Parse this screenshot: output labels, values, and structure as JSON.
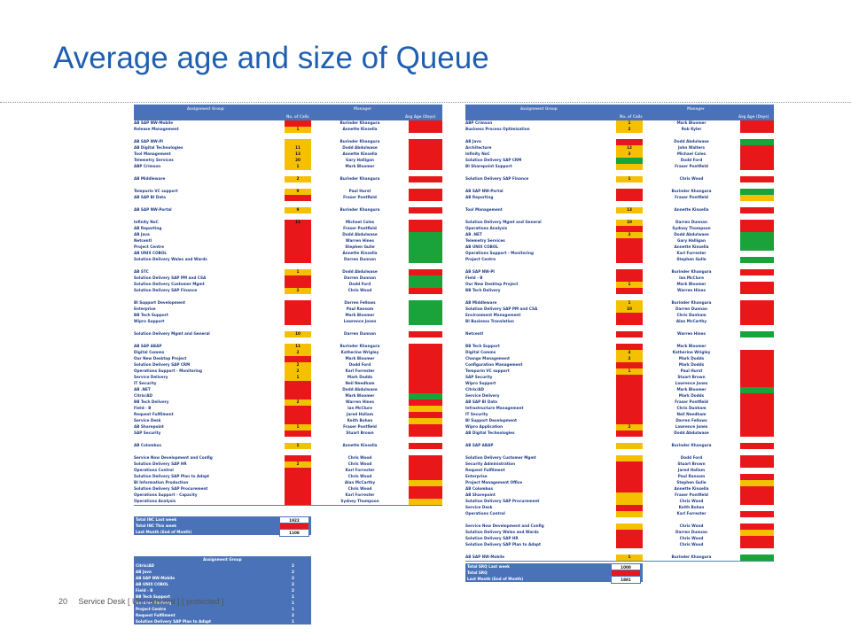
{
  "slide": {
    "title": "Average age and size of Queue",
    "page_number": "20",
    "footer_text": "Service Desk [ Unrestricted ] [ protected ]"
  },
  "colors": {
    "green": "#1aa33a",
    "yellow": "#f5c000",
    "red": "#e8171a",
    "header_blue": "#4a72b8"
  },
  "left_table": {
    "headers": [
      "Assignment Group",
      "No. of Calls",
      "Manager",
      "Avg Age (Days)"
    ],
    "rows": [
      {
        "g": "AB SAP NW-Mobile",
        "n": "",
        "m": "Burinder Khangura",
        "s": "r",
        "a": "r"
      },
      {
        "g": "Release Management",
        "n": "1",
        "m": "Annette Kinsella",
        "s": "y",
        "a": "r"
      },
      {
        "g": "",
        "n": "",
        "m": "",
        "s": "",
        "a": ""
      },
      {
        "g": "AB SAP NW-PI",
        "n": "",
        "m": "Burinder Khangura",
        "s": "y",
        "a": "r"
      },
      {
        "g": "AB Digital Technologies",
        "n": "11",
        "m": "Dodd Abdulwase",
        "s": "y",
        "a": "r"
      },
      {
        "g": "Tool Management",
        "n": "13",
        "m": "Annette Kinsella",
        "s": "y",
        "a": "r"
      },
      {
        "g": "Telemetry Services",
        "n": "20",
        "m": "Gary Halligan",
        "s": "y",
        "a": "r"
      },
      {
        "g": "ABP Crimson",
        "n": "1",
        "m": "Mark Bloomer",
        "s": "y",
        "a": "r"
      },
      {
        "g": "",
        "n": "",
        "m": "",
        "s": "",
        "a": ""
      },
      {
        "g": "AB Middleware",
        "n": "2",
        "m": "Burinder Khangura",
        "s": "y",
        "a": "r"
      },
      {
        "g": "",
        "n": "",
        "m": "",
        "s": "",
        "a": ""
      },
      {
        "g": "Tempurin VC support",
        "n": "9",
        "m": "Paul Hurst",
        "s": "y",
        "a": "r"
      },
      {
        "g": "AB SAP BI Data",
        "n": "",
        "m": "Fraser Pontfield",
        "s": "r",
        "a": "r"
      },
      {
        "g": "",
        "n": "",
        "m": "",
        "s": "",
        "a": ""
      },
      {
        "g": "AB SAP NW-Portal",
        "n": "9",
        "m": "Burinder Khangura",
        "s": "y",
        "a": "r"
      },
      {
        "g": "",
        "n": "",
        "m": "",
        "s": "",
        "a": ""
      },
      {
        "g": "Infinity NoC",
        "n": "11",
        "m": "Michael Coles",
        "s": "r",
        "a": "r"
      },
      {
        "g": "AB Reporting",
        "n": "",
        "m": "Fraser Pontfield",
        "s": "r",
        "a": "r"
      },
      {
        "g": "AB Java",
        "n": "",
        "m": "Dodd Abdulwase",
        "s": "r",
        "a": "g"
      },
      {
        "g": "Netcentl",
        "n": "",
        "m": "Warren Hines",
        "s": "r",
        "a": "g"
      },
      {
        "g": "Project Centre",
        "n": "",
        "m": "Stephen Gulle",
        "s": "r",
        "a": "g"
      },
      {
        "g": "AB UNIX COBOL",
        "n": "",
        "m": "Annette Kinsella",
        "s": "r",
        "a": "g"
      },
      {
        "g": "Solution Delivery Wales and Wards",
        "n": "",
        "m": "Darren Dunnan",
        "s": "r",
        "a": "g"
      },
      {
        "g": "",
        "n": "",
        "m": "",
        "s": "",
        "a": ""
      },
      {
        "g": "AB STC",
        "n": "1",
        "m": "Dodd Abdulwase",
        "s": "y",
        "a": "r"
      },
      {
        "g": "Solution Delivery SAP PM and CSA",
        "n": "",
        "m": "Darren Dunnan",
        "s": "r",
        "a": "g"
      },
      {
        "g": "Solution Delivery Customer Mgmt",
        "n": "",
        "m": "Dodd Ford",
        "s": "r",
        "a": "g"
      },
      {
        "g": "Solution Delivery SAP Finance",
        "n": "2",
        "m": "Chris Wood",
        "s": "y",
        "a": "r"
      },
      {
        "g": "",
        "n": "",
        "m": "",
        "s": "",
        "a": ""
      },
      {
        "g": "BI Support Development",
        "n": "",
        "m": "Darren Fellows",
        "s": "r",
        "a": "g"
      },
      {
        "g": "Enterprise",
        "n": "",
        "m": "Paul Ransom",
        "s": "r",
        "a": "g"
      },
      {
        "g": "BB Tech Support",
        "n": "",
        "m": "Mark Bloomer",
        "s": "r",
        "a": "g"
      },
      {
        "g": "Wipro Support",
        "n": "",
        "m": "Lawrence Jones",
        "s": "r",
        "a": "g"
      },
      {
        "g": "",
        "n": "",
        "m": "",
        "s": "",
        "a": ""
      },
      {
        "g": "Solution Delivery Mgmt and General",
        "n": "10",
        "m": "Darren Dunnan",
        "s": "y",
        "a": "r"
      },
      {
        "g": "",
        "n": "",
        "m": "",
        "s": "",
        "a": ""
      },
      {
        "g": "AB SAP ABAP",
        "n": "11",
        "m": "Burinder Khangura",
        "s": "y",
        "a": "r"
      },
      {
        "g": "Digital Comms",
        "n": "2",
        "m": "Katherine Wrigley",
        "s": "y",
        "a": "r"
      },
      {
        "g": "Our New Desktop Project",
        "n": "",
        "m": "Mark Bloomer",
        "s": "r",
        "a": "r"
      },
      {
        "g": "Solution Delivery SAP CRM",
        "n": "2",
        "m": "Dodd Ford",
        "s": "y",
        "a": "r"
      },
      {
        "g": "Operations Support - Monitoring",
        "n": "2",
        "m": "Karl Forrester",
        "s": "y",
        "a": "r"
      },
      {
        "g": "Service Delivery",
        "n": "1",
        "m": "Mark Dodds",
        "s": "y",
        "a": "r"
      },
      {
        "g": "IT Security",
        "n": "",
        "m": "Neil Needham",
        "s": "r",
        "a": "r"
      },
      {
        "g": "AB .NET",
        "n": "",
        "m": "Dodd Abdulwase",
        "s": "r",
        "a": "r"
      },
      {
        "g": "Citrix/AD",
        "n": "",
        "m": "Mark Bloomer",
        "s": "r",
        "a": "g"
      },
      {
        "g": "BB Tech Delivery",
        "n": "2",
        "m": "Warren Hines",
        "s": "y",
        "a": "r"
      },
      {
        "g": "Field - B",
        "n": "",
        "m": "Ian McClure",
        "s": "r",
        "a": "y"
      },
      {
        "g": "Request Fulfilment",
        "n": "",
        "m": "Jared Hallam",
        "s": "r",
        "a": "r"
      },
      {
        "g": "Service Desk",
        "n": "",
        "m": "Keith Bohan",
        "s": "r",
        "a": "y"
      },
      {
        "g": "AB Sharepoint",
        "n": "1",
        "m": "Fraser Pontfield",
        "s": "y",
        "a": "r"
      },
      {
        "g": "SAP Security",
        "n": "",
        "m": "Stuart Brown",
        "s": "r",
        "a": "r"
      },
      {
        "g": "",
        "n": "",
        "m": "",
        "s": "",
        "a": ""
      },
      {
        "g": "AB Colombus",
        "n": "1",
        "m": "Annette Kinsella",
        "s": "y",
        "a": "r"
      },
      {
        "g": "",
        "n": "",
        "m": "",
        "s": "",
        "a": ""
      },
      {
        "g": "Service Now Development and Config",
        "n": "",
        "m": "Chris Wood",
        "s": "r",
        "a": "r"
      },
      {
        "g": "Solution Delivery SAP HR",
        "n": "2",
        "m": "Chris Wood",
        "s": "y",
        "a": "r"
      },
      {
        "g": "Operations Control",
        "n": "",
        "m": "Karl Forrester",
        "s": "r",
        "a": "r"
      },
      {
        "g": "Solution Delivery SAP Plan to Adapt",
        "n": "",
        "m": "Chris Wood",
        "s": "r",
        "a": "r"
      },
      {
        "g": "BI Information Production",
        "n": "",
        "m": "Alan McCarthy",
        "s": "r",
        "a": "y"
      },
      {
        "g": "Solution Delivery SAP Procurement",
        "n": "",
        "m": "Chris Wood",
        "s": "r",
        "a": "r"
      },
      {
        "g": "Operations Support - Capacity",
        "n": "",
        "m": "Karl Forrester",
        "s": "r",
        "a": "r"
      },
      {
        "g": "Operations Analysis",
        "n": "",
        "m": "Sydney Thompson",
        "s": "r",
        "a": "y"
      }
    ]
  },
  "right_table": {
    "headers": [
      "Assignment Group",
      "No. of Calls",
      "Manager",
      "Avg Age (Days)"
    ],
    "rows": [
      {
        "g": "ABP Crimson",
        "n": "1",
        "m": "Mark Bloomer",
        "s": "y",
        "a": "r"
      },
      {
        "g": "Business Process Optimisation",
        "n": "2",
        "m": "Rob Kyler",
        "s": "y",
        "a": "r"
      },
      {
        "g": "",
        "n": "",
        "m": "",
        "s": "",
        "a": ""
      },
      {
        "g": "AB Java",
        "n": "",
        "m": "Dodd Abdulwase",
        "s": "r",
        "a": "g"
      },
      {
        "g": "Architecture",
        "n": "12",
        "m": "John Walters",
        "s": "y",
        "a": "r"
      },
      {
        "g": "Infinity NoC",
        "n": "3",
        "m": "Michael Coles",
        "s": "y",
        "a": "r"
      },
      {
        "g": "Solution Delivery SAP CRM",
        "n": "",
        "m": "Dodd Ford",
        "s": "g",
        "a": "r"
      },
      {
        "g": "BI Sharepoint Support",
        "n": "",
        "m": "Fraser Pontfield",
        "s": "y",
        "a": "r"
      },
      {
        "g": "",
        "n": "",
        "m": "",
        "s": "",
        "a": ""
      },
      {
        "g": "Solution Delivery SAP Finance",
        "n": "1",
        "m": "Chris Wood",
        "s": "y",
        "a": "r"
      },
      {
        "g": "",
        "n": "",
        "m": "",
        "s": "",
        "a": ""
      },
      {
        "g": "AB SAP NW-Portal",
        "n": "",
        "m": "Burinder Khangura",
        "s": "r",
        "a": "g"
      },
      {
        "g": "AB Reporting",
        "n": "",
        "m": "Fraser Pontfield",
        "s": "r",
        "a": "y"
      },
      {
        "g": "",
        "n": "",
        "m": "",
        "s": "",
        "a": ""
      },
      {
        "g": "Tool Management",
        "n": "13",
        "m": "Annette Kinsella",
        "s": "y",
        "a": "r"
      },
      {
        "g": "",
        "n": "",
        "m": "",
        "s": "",
        "a": ""
      },
      {
        "g": "Solution Delivery Mgmt and General",
        "n": "10",
        "m": "Darren Dunnan",
        "s": "y",
        "a": "r"
      },
      {
        "g": "Operations Analysis",
        "n": "",
        "m": "Sydney Thompson",
        "s": "r",
        "a": "r"
      },
      {
        "g": "AB .NET",
        "n": "3",
        "m": "Dodd Abdulwase",
        "s": "y",
        "a": "g"
      },
      {
        "g": "Telemetry Services",
        "n": "",
        "m": "Gary Halligan",
        "s": "r",
        "a": "g"
      },
      {
        "g": "AB UNIX COBOL",
        "n": "",
        "m": "Annette Kinsella",
        "s": "r",
        "a": "g"
      },
      {
        "g": "Operations Support - Monitoring",
        "n": "",
        "m": "Karl Forrester",
        "s": "r",
        "a": "w"
      },
      {
        "g": "Project Centre",
        "n": "",
        "m": "Stephen Gulle",
        "s": "r",
        "a": "g"
      },
      {
        "g": "",
        "n": "",
        "m": "",
        "s": "",
        "a": ""
      },
      {
        "g": "AB SAP NW-PI",
        "n": "",
        "m": "Burinder Khangura",
        "s": "r",
        "a": "r"
      },
      {
        "g": "Field - B",
        "n": "",
        "m": "Ian McClure",
        "s": "r",
        "a": "w"
      },
      {
        "g": "Our New Desktop Project",
        "n": "1",
        "m": "Mark Bloomer",
        "s": "y",
        "a": "r"
      },
      {
        "g": "BB Tech Delivery",
        "n": "",
        "m": "Warren Hines",
        "s": "r",
        "a": "r"
      },
      {
        "g": "",
        "n": "",
        "m": "",
        "s": "",
        "a": ""
      },
      {
        "g": "AB Middleware",
        "n": "1",
        "m": "Burinder Khangura",
        "s": "y",
        "a": "r"
      },
      {
        "g": "Solution Delivery SAP PM and CSA",
        "n": "10",
        "m": "Darren Dunnan",
        "s": "y",
        "a": "r"
      },
      {
        "g": "Environment Management",
        "n": "",
        "m": "Chris Dunham",
        "s": "r",
        "a": "r"
      },
      {
        "g": "BI Business Translation",
        "n": "",
        "m": "Alan McCarthy",
        "s": "r",
        "a": "r"
      },
      {
        "g": "",
        "n": "",
        "m": "",
        "s": "",
        "a": ""
      },
      {
        "g": "Netcentl",
        "n": "",
        "m": "Warren Hines",
        "s": "r",
        "a": "g"
      },
      {
        "g": "",
        "n": "",
        "m": "",
        "s": "",
        "a": ""
      },
      {
        "g": "BB Tech Support",
        "n": "",
        "m": "Mark Bloomer",
        "s": "r",
        "a": "w"
      },
      {
        "g": "Digital Comms",
        "n": "4",
        "m": "Katherine Wrigley",
        "s": "y",
        "a": "r"
      },
      {
        "g": "Change Management",
        "n": "2",
        "m": "Mark Dodds",
        "s": "y",
        "a": "r"
      },
      {
        "g": "Configuration Management",
        "n": "",
        "m": "Mark Dodds",
        "s": "r",
        "a": "r"
      },
      {
        "g": "Tempurin VC support",
        "n": "1",
        "m": "Paul Hurst",
        "s": "y",
        "a": "r"
      },
      {
        "g": "SAP Security",
        "n": "",
        "m": "Stuart Brown",
        "s": "r",
        "a": "r"
      },
      {
        "g": "Wipro Support",
        "n": "",
        "m": "Lawrence Jones",
        "s": "r",
        "a": "r"
      },
      {
        "g": "Citrix/AD",
        "n": "",
        "m": "Mark Bloomer",
        "s": "r",
        "a": "g"
      },
      {
        "g": "Service Delivery",
        "n": "",
        "m": "Mark Dodds",
        "s": "r",
        "a": "r"
      },
      {
        "g": "AB SAP BI Data",
        "n": "",
        "m": "Fraser Pontfield",
        "s": "r",
        "a": "r"
      },
      {
        "g": "Infrastructure Management",
        "n": "",
        "m": "Chris Dunham",
        "s": "r",
        "a": "r"
      },
      {
        "g": "IT Security",
        "n": "",
        "m": "Neil Needham",
        "s": "r",
        "a": "r"
      },
      {
        "g": "BI Support Development",
        "n": "",
        "m": "Darren Fellows",
        "s": "r",
        "a": "r"
      },
      {
        "g": "Wipro Application",
        "n": "2",
        "m": "Lawrence Jones",
        "s": "y",
        "a": "r"
      },
      {
        "g": "AB Digital Technologies",
        "n": "",
        "m": "Dodd Abdulwase",
        "s": "r",
        "a": "r"
      },
      {
        "g": "",
        "n": "",
        "m": "",
        "s": "",
        "a": ""
      },
      {
        "g": "AB SAP ABAP",
        "n": "",
        "m": "Burinder Khangura",
        "s": "y",
        "a": "r"
      },
      {
        "g": "",
        "n": "",
        "m": "",
        "s": "",
        "a": ""
      },
      {
        "g": "Solution Delivery Customer Mgmt",
        "n": "",
        "m": "Dodd Ford",
        "s": "y",
        "a": "r"
      },
      {
        "g": "Security Administration",
        "n": "",
        "m": "Stuart Brown",
        "s": "r",
        "a": "r"
      },
      {
        "g": "Request Fulfilment",
        "n": "",
        "m": "Jared Hallam",
        "s": "r",
        "a": "w"
      },
      {
        "g": "Enterprise",
        "n": "",
        "m": "Paul Ransom",
        "s": "r",
        "a": "r"
      },
      {
        "g": "Project Management Office",
        "n": "",
        "m": "Stephen Gulle",
        "s": "r",
        "a": "y"
      },
      {
        "g": "AB Colombus",
        "n": "",
        "m": "Annette Kinsella",
        "s": "r",
        "a": "r"
      },
      {
        "g": "AB Sharepoint",
        "n": "",
        "m": "Fraser Pontfield",
        "s": "y",
        "a": "r"
      },
      {
        "g": "Solution Delivery SAP Procurement",
        "n": "",
        "m": "Chris Wood",
        "s": "y",
        "a": "r"
      },
      {
        "g": "Service Desk",
        "n": "",
        "m": "Keith Bohan",
        "s": "r",
        "a": "w"
      },
      {
        "g": "Operations Control",
        "n": "",
        "m": "Karl Forrester",
        "s": "y",
        "a": "r"
      },
      {
        "g": "",
        "n": "",
        "m": "",
        "s": "",
        "a": ""
      },
      {
        "g": "Service Now Development and Config",
        "n": "",
        "m": "Chris Wood",
        "s": "y",
        "a": "r"
      },
      {
        "g": "Solution Delivery Wales and Wards",
        "n": "",
        "m": "Darren Dunnan",
        "s": "r",
        "a": "y"
      },
      {
        "g": "Solution Delivery SAP HR",
        "n": "",
        "m": "Chris Wood",
        "s": "r",
        "a": "r"
      },
      {
        "g": "Solution Delivery SAP Plan to Adapt",
        "n": "",
        "m": "Chris Wood",
        "s": "r",
        "a": "r"
      },
      {
        "g": "",
        "n": "",
        "m": "",
        "s": "",
        "a": ""
      },
      {
        "g": "AB SAP NW-Mobile",
        "n": "1",
        "m": "Burinder Khangura",
        "s": "y",
        "a": "g"
      }
    ]
  },
  "left_summary": [
    {
      "label": "Total INC Last week",
      "value": "1922"
    },
    {
      "label": "Total INC This week",
      "value": ""
    },
    {
      "label": "Last Month (End of Month)",
      "value": "1108"
    }
  ],
  "right_summary": [
    {
      "label": "Total SRQ Last week",
      "value": "1000"
    },
    {
      "label": "Total SRQ",
      "value": ""
    },
    {
      "label": "Last Month (End of Month)",
      "value": "1881"
    }
  ],
  "problems_table": {
    "header": "Assignment Group",
    "rows": [
      {
        "g": "Citrix/AD",
        "v": "2"
      },
      {
        "g": "AB Java",
        "v": "2"
      },
      {
        "g": "AB SAP NW-Mobile",
        "v": "2"
      },
      {
        "g": "AB UNIX COBOL",
        "v": "2"
      },
      {
        "g": "Field - B",
        "v": "2"
      },
      {
        "g": "BB Tech Support",
        "v": "1"
      },
      {
        "g": "Solution Delivery",
        "v": "1"
      },
      {
        "g": "Project Centre",
        "v": "1"
      },
      {
        "g": "Request Fulfilment",
        "v": "2"
      },
      {
        "g": "Solution Delivery SAP Plan to Adapt",
        "v": "1"
      }
    ]
  }
}
